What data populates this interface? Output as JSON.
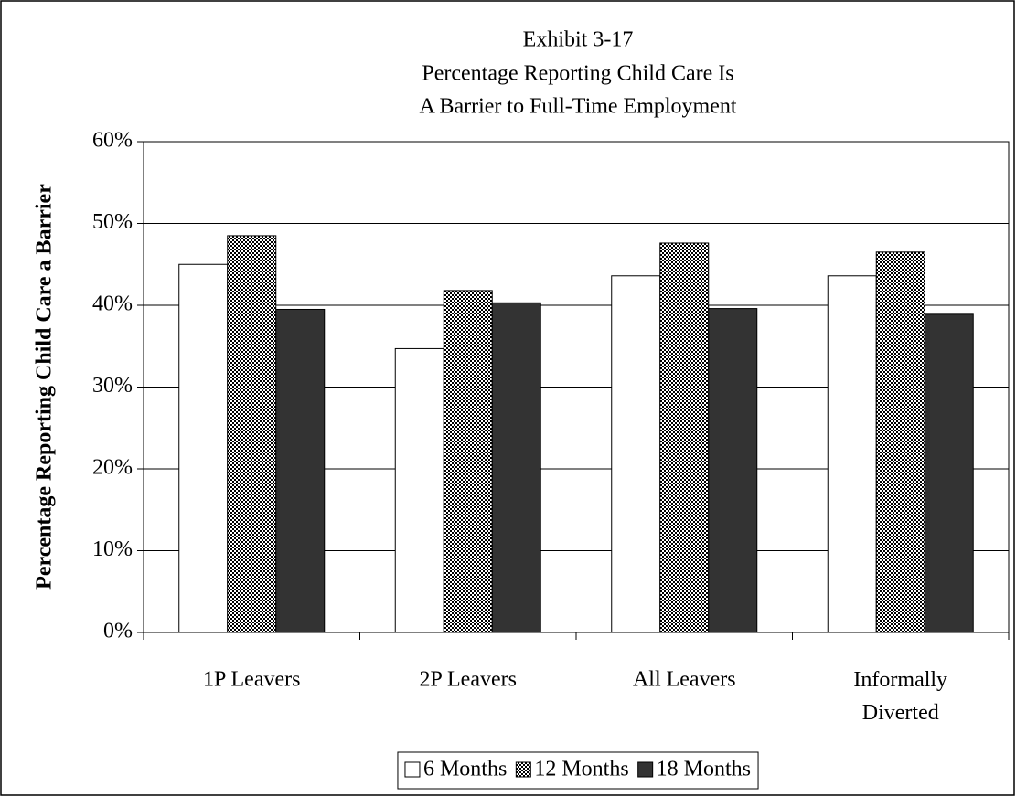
{
  "chart_data": {
    "type": "bar",
    "title": [
      "Exhibit 3-17",
      "Percentage Reporting Child Care Is",
      "A Barrier to Full-Time Employment"
    ],
    "y_label": "Percentage Reporting Child Care a Barrier",
    "categories": [
      "1P Leavers",
      "2P Leavers",
      "All Leavers",
      "Informally Diverted"
    ],
    "series": [
      {
        "name": "6 Months",
        "color": "#ffffff",
        "values": [
          45,
          34.7,
          43.6,
          43.6
        ]
      },
      {
        "name": "12 Months",
        "color": "#808080",
        "pattern": "checker",
        "values": [
          48.5,
          41.8,
          47.6,
          46.5
        ]
      },
      {
        "name": "18 Months",
        "color": "#333333",
        "values": [
          39.5,
          40.3,
          39.6,
          38.9
        ]
      }
    ],
    "ylim": [
      0,
      60
    ],
    "yticks": [
      {
        "value": 0,
        "label": "0%"
      },
      {
        "value": 10,
        "label": "10%"
      },
      {
        "value": 20,
        "label": "20%"
      },
      {
        "value": 30,
        "label": "30%"
      },
      {
        "value": 40,
        "label": "40%"
      },
      {
        "value": 50,
        "label": "50%"
      },
      {
        "value": 60,
        "label": "60%"
      }
    ],
    "grid": true,
    "legend": "bottom"
  }
}
